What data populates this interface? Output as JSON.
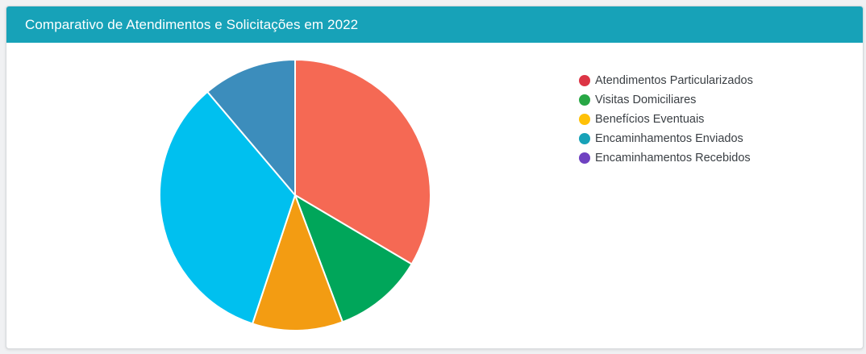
{
  "card": {
    "title": "Comparativo de Atendimentos e Solicitações em 2022",
    "header_color": "#17a2b8"
  },
  "legend": [
    {
      "label": "Atendimentos Particularizados",
      "color": "#dc3545"
    },
    {
      "label": "Visitas Domiciliares",
      "color": "#28a745"
    },
    {
      "label": "Benefícios Eventuais",
      "color": "#ffc107"
    },
    {
      "label": "Encaminhamentos Enviados",
      "color": "#17a2b8"
    },
    {
      "label": "Encaminhamentos Recebidos",
      "color": "#6f42c1"
    }
  ],
  "chart_data": {
    "type": "pie",
    "start": "top",
    "direction": "clockwise",
    "slices": [
      {
        "value": 33.5,
        "color": "#f56954"
      },
      {
        "value": 10.8,
        "color": "#00a65a"
      },
      {
        "value": 10.8,
        "color": "#f39c12"
      },
      {
        "value": 33.7,
        "color": "#00c0ef"
      },
      {
        "value": 11.2,
        "color": "#3c8dbc"
      }
    ]
  }
}
